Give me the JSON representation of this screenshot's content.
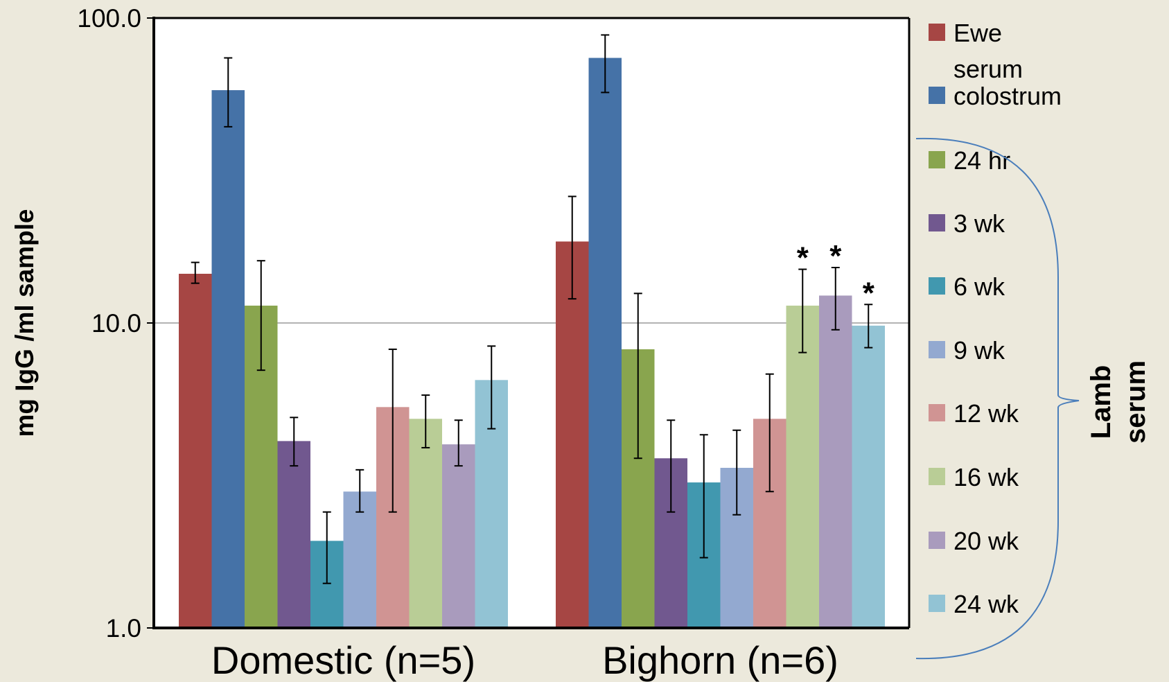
{
  "chart_data": {
    "type": "bar",
    "title": "",
    "xlabel": "",
    "ylabel": "mg IgG /ml sample",
    "yscale": "log",
    "ylim": [
      1.0,
      100.0
    ],
    "yticks": [
      "1.0",
      "10.0",
      "100.0"
    ],
    "grid": "horizontal gridline at 10.0",
    "legend_position": "right",
    "categories": [
      "Domestic (n=5)",
      "Bighorn (n=6)"
    ],
    "series": [
      {
        "name": "Ewe serum",
        "color": "#a64644",
        "values": [
          14.5,
          18.5
        ],
        "errors": [
          [
            13.5,
            15.8
          ],
          [
            12.0,
            26.0
          ]
        ]
      },
      {
        "name": "colostrum",
        "color": "#4572a7",
        "values": [
          58.0,
          74.0
        ],
        "errors": [
          [
            44.0,
            74.0
          ],
          [
            57.0,
            88.0
          ]
        ]
      },
      {
        "name": "24 hr",
        "color": "#89a54e",
        "values": [
          11.4,
          8.2
        ],
        "errors": [
          [
            7.0,
            16.0
          ],
          [
            3.6,
            12.5
          ]
        ]
      },
      {
        "name": "3 wk",
        "color": "#71588f",
        "values": [
          4.1,
          3.6
        ],
        "errors": [
          [
            3.4,
            4.9
          ],
          [
            2.4,
            4.8
          ]
        ]
      },
      {
        "name": "6 wk",
        "color": "#4198af",
        "values": [
          1.93,
          3.0
        ],
        "errors": [
          [
            1.4,
            2.4
          ],
          [
            1.7,
            4.3
          ]
        ]
      },
      {
        "name": "9 wk",
        "color": "#93a9d0",
        "values": [
          2.8,
          3.35
        ],
        "errors": [
          [
            2.4,
            3.3
          ],
          [
            2.35,
            4.45
          ]
        ]
      },
      {
        "name": "12 wk",
        "color": "#d09493",
        "values": [
          5.3,
          4.85
        ],
        "errors": [
          [
            2.4,
            8.2
          ],
          [
            2.8,
            6.8
          ]
        ]
      },
      {
        "name": "16 wk",
        "color": "#b9cd96",
        "values": [
          4.85,
          11.4
        ],
        "errors": [
          [
            3.9,
            5.8
          ],
          [
            8.0,
            15.0
          ]
        ]
      },
      {
        "name": "20 wk",
        "color": "#a99bbd",
        "values": [
          4.0,
          12.3
        ],
        "errors": [
          [
            3.4,
            4.8
          ],
          [
            9.5,
            15.2
          ]
        ]
      },
      {
        "name": "24 wk",
        "color": "#92c3d4",
        "values": [
          6.5,
          9.8
        ],
        "errors": [
          [
            4.5,
            8.4
          ],
          [
            8.3,
            11.5
          ]
        ]
      }
    ],
    "annotations": [
      {
        "text": "*",
        "category": "Bighorn (n=6)",
        "series": "16 wk"
      },
      {
        "text": "*",
        "category": "Bighorn (n=6)",
        "series": "20 wk"
      },
      {
        "text": "*",
        "category": "Bighorn (n=6)",
        "series": "24 wk"
      }
    ],
    "legend": {
      "items": [
        {
          "lines": [
            "Ewe",
            "serum"
          ],
          "color": "#a64644"
        },
        {
          "lines": [
            "colostrum"
          ],
          "color": "#4572a7"
        },
        {
          "lines": [
            "24 hr"
          ],
          "color": "#89a54e"
        },
        {
          "lines": [
            "3 wk"
          ],
          "color": "#71588f"
        },
        {
          "lines": [
            "6 wk"
          ],
          "color": "#4198af"
        },
        {
          "lines": [
            "9 wk"
          ],
          "color": "#93a9d0"
        },
        {
          "lines": [
            "12 wk"
          ],
          "color": "#d09493"
        },
        {
          "lines": [
            "16 wk"
          ],
          "color": "#b9cd96"
        },
        {
          "lines": [
            "20 wk"
          ],
          "color": "#a99bbd"
        },
        {
          "lines": [
            "24 wk"
          ],
          "color": "#92c3d4"
        }
      ],
      "bracket_label": [
        "Lamb",
        "serum"
      ]
    }
  }
}
